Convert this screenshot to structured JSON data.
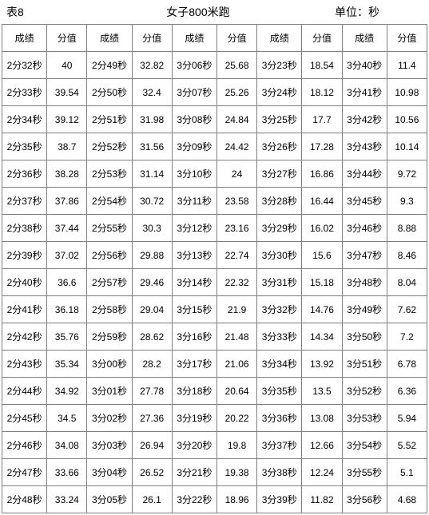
{
  "header": {
    "table_label": "表8",
    "title": "女子800米跑",
    "unit": "单位：秒"
  },
  "columns": [
    "成绩",
    "分值",
    "成绩",
    "分值",
    "成绩",
    "分值",
    "成绩",
    "分值",
    "成绩",
    "分值"
  ],
  "rows": [
    [
      "2分32秒",
      "40",
      "2分49秒",
      "32.82",
      "3分06秒",
      "25.68",
      "3分23秒",
      "18.54",
      "3分40秒",
      "11.4"
    ],
    [
      "2分33秒",
      "39.54",
      "2分50秒",
      "32.4",
      "3分07秒",
      "25.26",
      "3分24秒",
      "18.12",
      "3分41秒",
      "10.98"
    ],
    [
      "2分34秒",
      "39.12",
      "2分51秒",
      "31.98",
      "3分08秒",
      "24.84",
      "3分25秒",
      "17.7",
      "3分42秒",
      "10.56"
    ],
    [
      "2分35秒",
      "38.7",
      "2分52秒",
      "31.56",
      "3分09秒",
      "24.42",
      "3分26秒",
      "17.28",
      "3分43秒",
      "10.14"
    ],
    [
      "2分36秒",
      "38.28",
      "2分53秒",
      "31.14",
      "3分10秒",
      "24",
      "3分27秒",
      "16.86",
      "3分44秒",
      "9.72"
    ],
    [
      "2分37秒",
      "37.86",
      "2分54秒",
      "30.72",
      "3分11秒",
      "23.58",
      "3分28秒",
      "16.44",
      "3分45秒",
      "9.3"
    ],
    [
      "2分38秒",
      "37.44",
      "2分55秒",
      "30.3",
      "3分12秒",
      "23.16",
      "3分29秒",
      "16.02",
      "3分46秒",
      "8.88"
    ],
    [
      "2分39秒",
      "37.02",
      "2分56秒",
      "29.88",
      "3分13秒",
      "22.74",
      "3分30秒",
      "15.6",
      "3分47秒",
      "8.46"
    ],
    [
      "2分40秒",
      "36.6",
      "2分57秒",
      "29.46",
      "3分14秒",
      "22.32",
      "3分31秒",
      "15.18",
      "3分48秒",
      "8.04"
    ],
    [
      "2分41秒",
      "36.18",
      "2分58秒",
      "29.04",
      "3分15秒",
      "21.9",
      "3分32秒",
      "14.76",
      "3分49秒",
      "7.62"
    ],
    [
      "2分42秒",
      "35.76",
      "2分59秒",
      "28.62",
      "3分16秒",
      "21.48",
      "3分33秒",
      "14.34",
      "3分50秒",
      "7.2"
    ],
    [
      "2分43秒",
      "35.34",
      "3分00秒",
      "28.2",
      "3分17秒",
      "21.06",
      "3分34秒",
      "13.92",
      "3分51秒",
      "6.78"
    ],
    [
      "2分44秒",
      "34.92",
      "3分01秒",
      "27.78",
      "3分18秒",
      "20.64",
      "3分35秒",
      "13.5",
      "3分52秒",
      "6.36"
    ],
    [
      "2分45秒",
      "34.5",
      "3分02秒",
      "27.36",
      "3分19秒",
      "20.22",
      "3分36秒",
      "13.08",
      "3分53秒",
      "5.94"
    ],
    [
      "2分46秒",
      "34.08",
      "3分03秒",
      "26.94",
      "3分20秒",
      "19.8",
      "3分37秒",
      "12.66",
      "3分54秒",
      "5.52"
    ],
    [
      "2分47秒",
      "33.66",
      "3分04秒",
      "26.52",
      "3分21秒",
      "19.38",
      "3分38秒",
      "12.24",
      "3分55秒",
      "5.1"
    ],
    [
      "2分48秒",
      "33.24",
      "3分05秒",
      "26.1",
      "3分22秒",
      "18.96",
      "3分39秒",
      "11.82",
      "3分56秒",
      "4.68"
    ]
  ],
  "style": {
    "type": "table",
    "header_fontsize": 14,
    "cell_fontsize": 12,
    "border_color": "#808080",
    "background_color": "#ffffff",
    "text_color": "#000000",
    "num_cols": 10,
    "num_rows": 18,
    "grade_col_width": 56,
    "score_col_width": 50
  }
}
